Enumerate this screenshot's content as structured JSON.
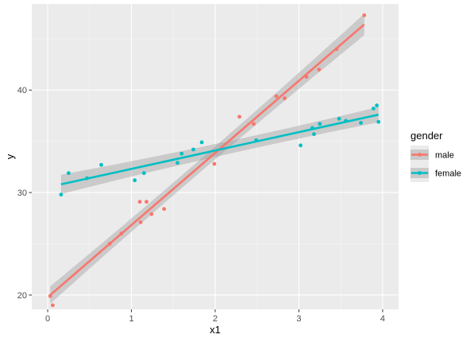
{
  "chart_data": {
    "type": "scatter",
    "xlabel": "x1",
    "ylabel": "y",
    "xlim": [
      -0.19,
      4.19
    ],
    "ylim": [
      18.6,
      48.4
    ],
    "x_ticks": [
      0,
      1,
      2,
      3,
      4
    ],
    "y_ticks": [
      20,
      30,
      40
    ],
    "x_tick_labels": [
      "0",
      "1",
      "2",
      "3",
      "4"
    ],
    "y_tick_labels": [
      "20",
      "30",
      "40"
    ],
    "grid": true,
    "legend": {
      "title": "gender",
      "position": "right",
      "entries": [
        "male",
        "female"
      ]
    },
    "series": [
      {
        "name": "male",
        "color": "#F8766D",
        "points": [
          [
            0.03,
            19.9
          ],
          [
            0.06,
            19.0
          ],
          [
            0.74,
            25.0
          ],
          [
            0.88,
            26.0
          ],
          [
            1.1,
            29.1
          ],
          [
            1.11,
            27.1
          ],
          [
            1.18,
            29.1
          ],
          [
            1.24,
            27.9
          ],
          [
            1.39,
            28.4
          ],
          [
            1.99,
            32.8
          ],
          [
            2.29,
            37.4
          ],
          [
            2.46,
            36.7
          ],
          [
            2.73,
            39.4
          ],
          [
            2.83,
            39.2
          ],
          [
            3.09,
            41.3
          ],
          [
            3.24,
            42.0
          ],
          [
            3.45,
            44.0
          ],
          [
            3.78,
            47.3
          ]
        ],
        "fit": {
          "x": [
            0.03,
            3.78
          ],
          "y": [
            20.0,
            46.4
          ]
        },
        "band_halfwidth": {
          "start": 0.85,
          "middle": 0.3,
          "end": 1.05
        }
      },
      {
        "name": "female",
        "color": "#00BFC4",
        "points": [
          [
            0.16,
            29.8
          ],
          [
            0.25,
            31.9
          ],
          [
            0.47,
            31.4
          ],
          [
            0.64,
            32.7
          ],
          [
            1.04,
            31.2
          ],
          [
            1.15,
            31.9
          ],
          [
            1.55,
            32.9
          ],
          [
            1.6,
            33.8
          ],
          [
            1.74,
            34.2
          ],
          [
            1.84,
            34.9
          ],
          [
            2.49,
            35.1
          ],
          [
            3.02,
            34.6
          ],
          [
            3.16,
            36.3
          ],
          [
            3.18,
            35.7
          ],
          [
            3.25,
            36.7
          ],
          [
            3.48,
            37.2
          ],
          [
            3.56,
            37.0
          ],
          [
            3.74,
            36.8
          ],
          [
            3.89,
            38.2
          ],
          [
            3.93,
            38.5
          ],
          [
            3.95,
            36.9
          ]
        ],
        "fit": {
          "x": [
            0.16,
            3.95
          ],
          "y": [
            30.8,
            37.6
          ]
        },
        "band_halfwidth": {
          "start": 0.95,
          "middle": 0.4,
          "end": 0.75
        }
      }
    ]
  }
}
